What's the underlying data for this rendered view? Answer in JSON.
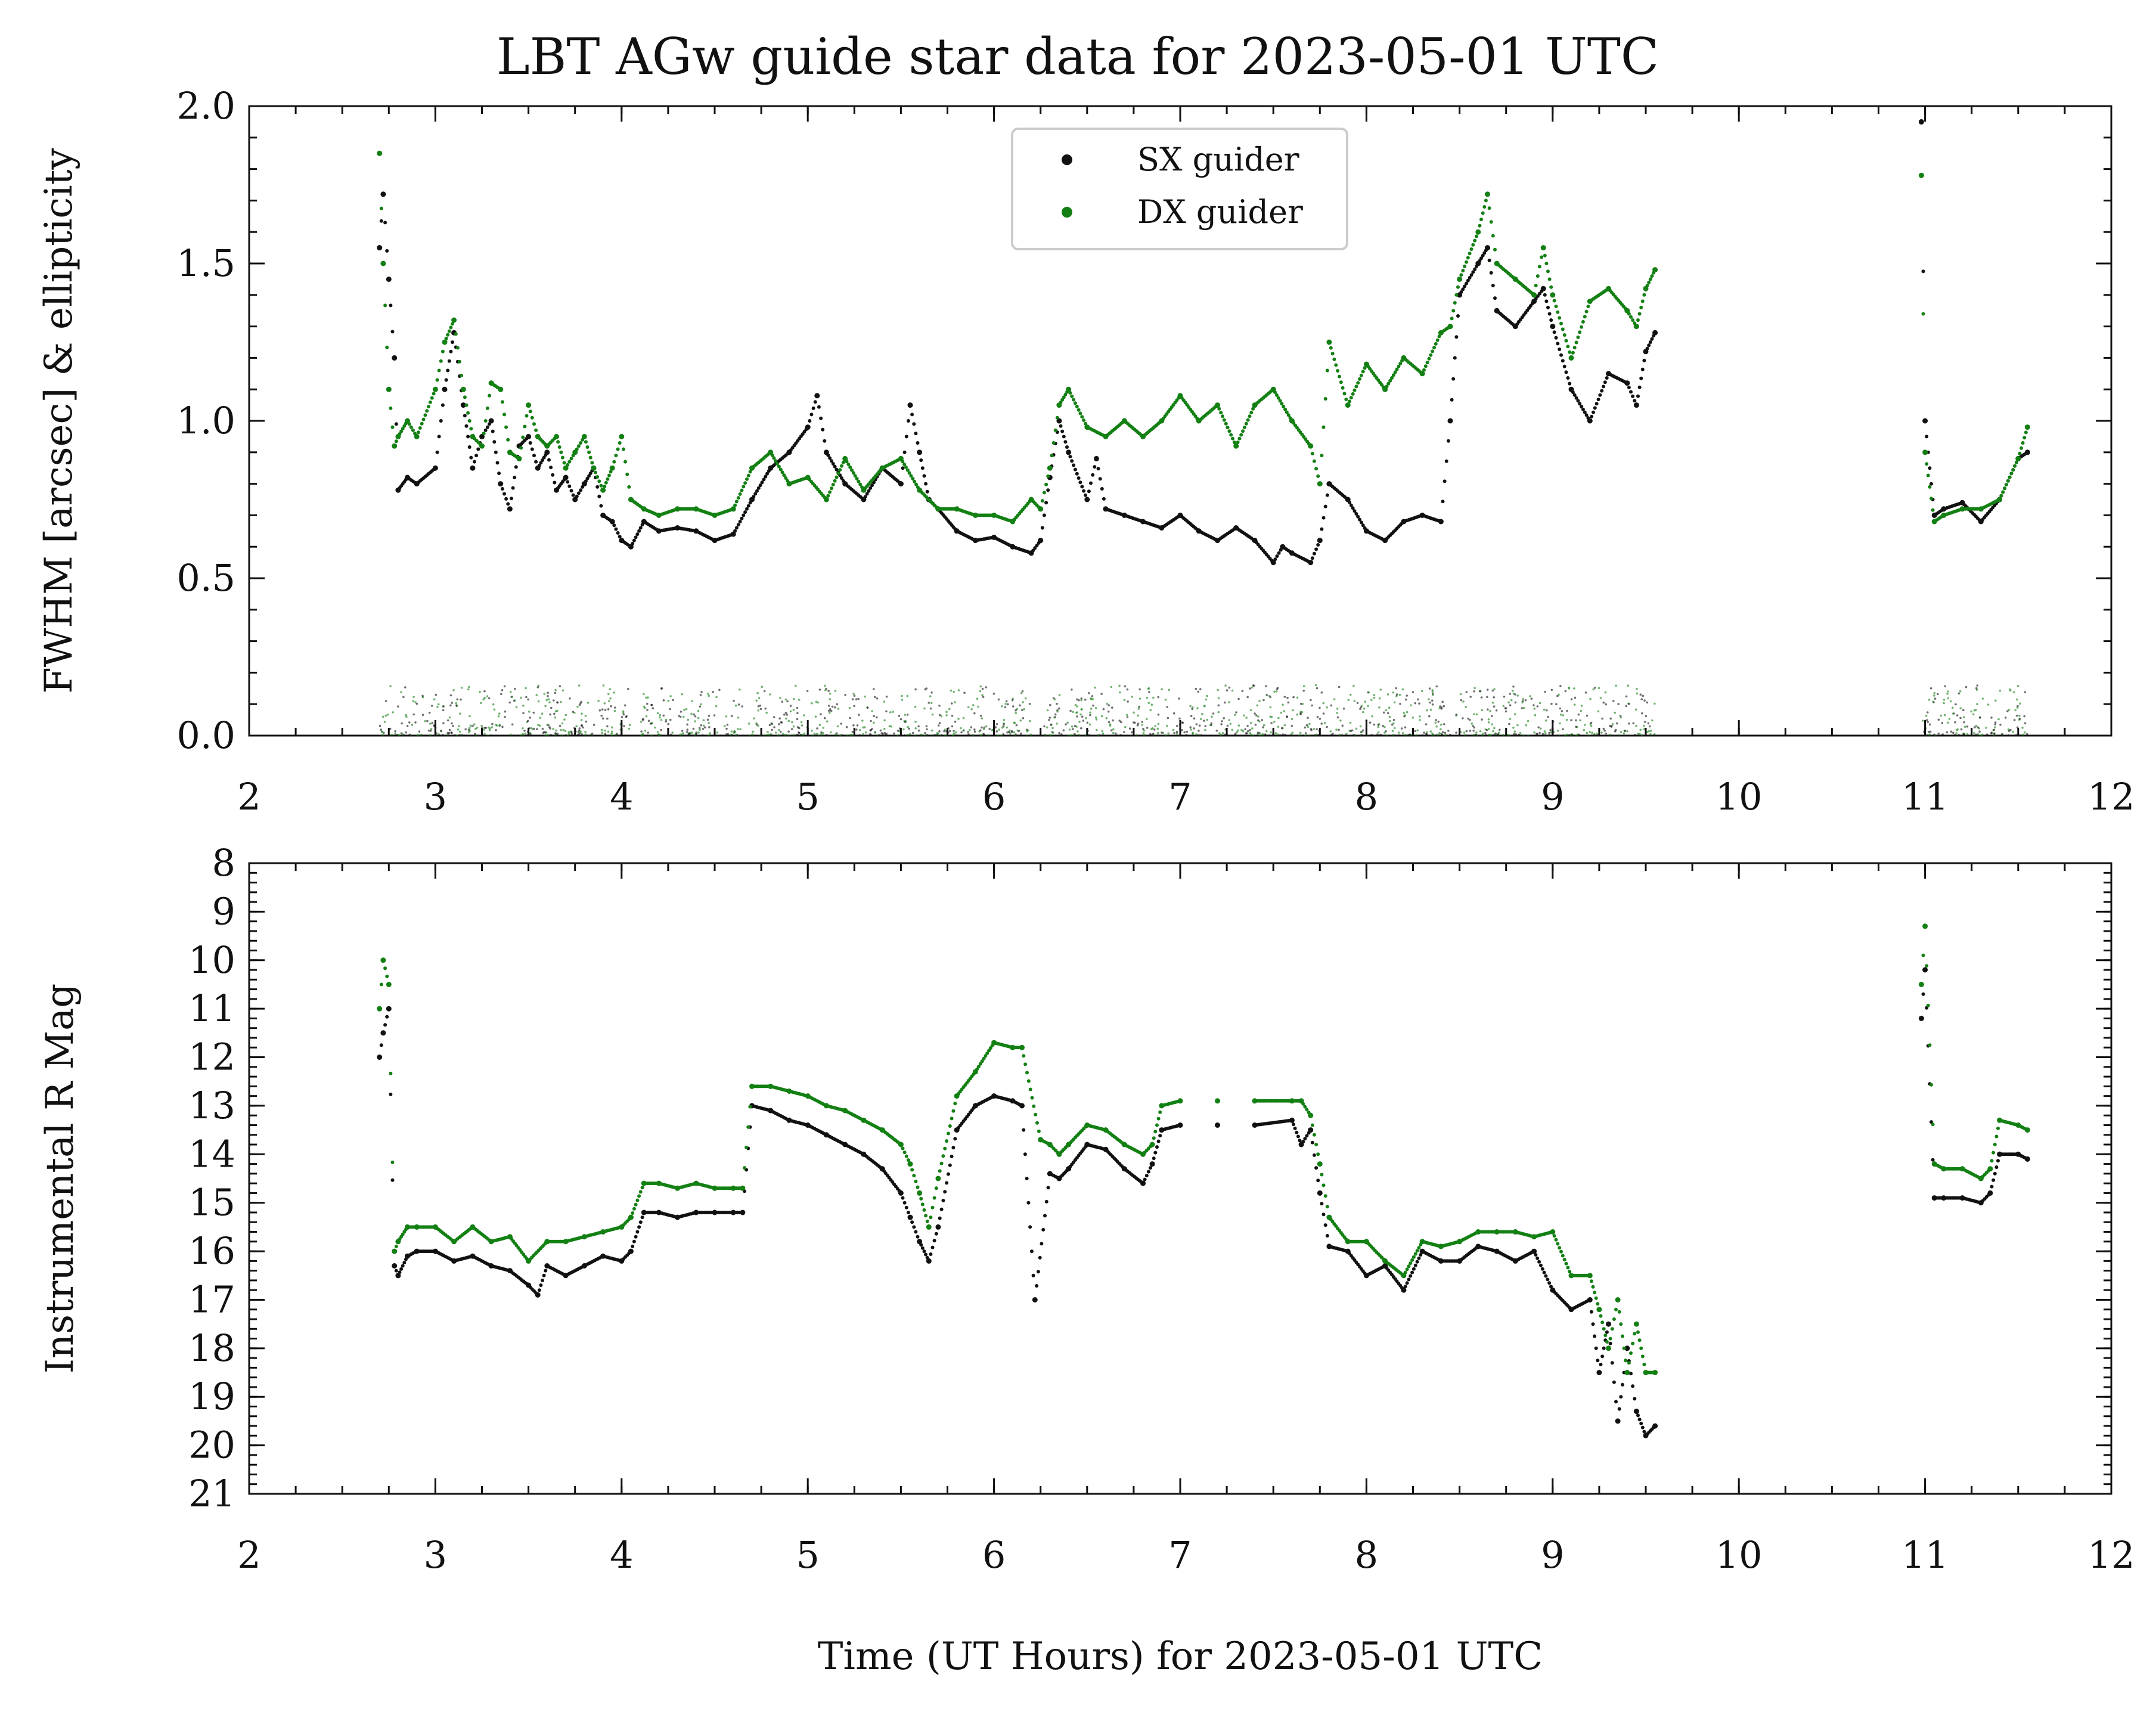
{
  "chart_data": [
    {
      "type": "scatter",
      "title": "LBT AGw guide star data for 2023-05-01 UTC",
      "ylabel": "FWHM [arcsec] & ellipticity",
      "xlabel": "",
      "xlim": [
        2,
        12
      ],
      "ylim": [
        0,
        2.0
      ],
      "x_ticks": [
        "2",
        "3",
        "4",
        "5",
        "6",
        "7",
        "8",
        "9",
        "10",
        "11",
        "12"
      ],
      "y_ticks": [
        "0.0",
        "0.5",
        "1.0",
        "1.5",
        "2.0"
      ],
      "legend": {
        "placement": "top-center",
        "entries": [
          "SX guider",
          "DX guider"
        ]
      },
      "grid": false,
      "series": [
        {
          "name": "SX guider",
          "color": "#111111",
          "x": [
            2.7,
            2.72,
            2.75,
            2.78,
            2.8,
            2.85,
            2.9,
            3.0,
            3.05,
            3.1,
            3.15,
            3.2,
            3.25,
            3.3,
            3.35,
            3.4,
            3.45,
            3.5,
            3.55,
            3.6,
            3.65,
            3.7,
            3.75,
            3.8,
            3.85,
            3.9,
            3.95,
            4.0,
            4.05,
            4.12,
            4.2,
            4.3,
            4.4,
            4.5,
            4.6,
            4.7,
            4.8,
            4.9,
            5.0,
            5.05,
            5.1,
            5.2,
            5.3,
            5.4,
            5.5,
            5.55,
            5.6,
            5.65,
            5.7,
            5.8,
            5.9,
            6.0,
            6.1,
            6.2,
            6.25,
            6.3,
            6.35,
            6.4,
            6.5,
            6.55,
            6.6,
            6.7,
            6.8,
            6.9,
            7.0,
            7.1,
            7.2,
            7.3,
            7.4,
            7.5,
            7.55,
            7.6,
            7.7,
            7.75,
            7.8,
            7.9,
            8.0,
            8.1,
            8.2,
            8.3,
            8.4,
            8.45,
            8.5,
            8.6,
            8.65,
            8.7,
            8.8,
            8.9,
            8.95,
            9.0,
            9.1,
            9.2,
            9.3,
            9.4,
            9.45,
            9.5,
            9.55,
            10.98,
            11.0,
            11.05,
            11.1,
            11.2,
            11.3,
            11.4,
            11.5,
            11.55
          ],
          "y": [
            1.55,
            1.72,
            1.45,
            1.2,
            0.78,
            0.82,
            0.8,
            0.85,
            1.1,
            1.28,
            1.05,
            0.85,
            0.95,
            1.0,
            0.8,
            0.72,
            0.92,
            0.95,
            0.85,
            0.9,
            0.78,
            0.82,
            0.75,
            0.8,
            0.85,
            0.7,
            0.68,
            0.62,
            0.6,
            0.68,
            0.65,
            0.66,
            0.65,
            0.62,
            0.64,
            0.75,
            0.85,
            0.9,
            0.98,
            1.08,
            0.9,
            0.8,
            0.75,
            0.85,
            0.8,
            1.05,
            0.9,
            0.75,
            0.72,
            0.65,
            0.62,
            0.63,
            0.6,
            0.58,
            0.62,
            0.82,
            1.0,
            0.9,
            0.75,
            0.88,
            0.72,
            0.7,
            0.68,
            0.66,
            0.7,
            0.65,
            0.62,
            0.66,
            0.62,
            0.55,
            0.6,
            0.58,
            0.55,
            0.62,
            0.8,
            0.75,
            0.65,
            0.62,
            0.68,
            0.7,
            0.68,
            1.0,
            1.4,
            1.5,
            1.55,
            1.35,
            1.3,
            1.38,
            1.42,
            1.3,
            1.1,
            1.0,
            1.15,
            1.12,
            1.05,
            1.22,
            1.28,
            1.95,
            1.0,
            0.7,
            0.72,
            0.74,
            0.68,
            0.75,
            0.88,
            0.9
          ]
        },
        {
          "name": "DX guider",
          "color": "#138013",
          "x": [
            2.7,
            2.72,
            2.75,
            2.78,
            2.8,
            2.85,
            2.9,
            3.0,
            3.05,
            3.1,
            3.15,
            3.2,
            3.25,
            3.3,
            3.35,
            3.4,
            3.45,
            3.5,
            3.55,
            3.6,
            3.65,
            3.7,
            3.75,
            3.8,
            3.85,
            3.9,
            3.95,
            4.0,
            4.05,
            4.12,
            4.2,
            4.3,
            4.4,
            4.5,
            4.6,
            4.7,
            4.8,
            4.9,
            5.0,
            5.1,
            5.2,
            5.3,
            5.4,
            5.5,
            5.6,
            5.7,
            5.8,
            5.9,
            6.0,
            6.1,
            6.2,
            6.25,
            6.3,
            6.35,
            6.4,
            6.5,
            6.6,
            6.7,
            6.8,
            6.9,
            7.0,
            7.1,
            7.2,
            7.3,
            7.4,
            7.5,
            7.6,
            7.7,
            7.75,
            7.8,
            7.9,
            8.0,
            8.1,
            8.2,
            8.3,
            8.4,
            8.45,
            8.5,
            8.6,
            8.65,
            8.7,
            8.8,
            8.9,
            8.95,
            9.0,
            9.1,
            9.2,
            9.3,
            9.4,
            9.45,
            9.5,
            9.55,
            10.98,
            11.0,
            11.05,
            11.1,
            11.2,
            11.3,
            11.4,
            11.5,
            11.55
          ],
          "y": [
            1.85,
            1.5,
            1.1,
            0.92,
            0.95,
            1.0,
            0.95,
            1.1,
            1.25,
            1.32,
            1.1,
            0.95,
            0.92,
            1.12,
            1.1,
            0.9,
            0.88,
            1.05,
            0.95,
            0.92,
            0.95,
            0.85,
            0.9,
            0.95,
            0.85,
            0.78,
            0.85,
            0.95,
            0.75,
            0.72,
            0.7,
            0.72,
            0.72,
            0.7,
            0.72,
            0.85,
            0.9,
            0.8,
            0.82,
            0.75,
            0.88,
            0.78,
            0.85,
            0.88,
            0.78,
            0.72,
            0.72,
            0.7,
            0.7,
            0.68,
            0.75,
            0.72,
            0.85,
            1.05,
            1.1,
            0.98,
            0.95,
            1.0,
            0.95,
            1.0,
            1.08,
            1.0,
            1.05,
            0.92,
            1.05,
            1.1,
            1.0,
            0.92,
            0.8,
            1.25,
            1.05,
            1.18,
            1.1,
            1.2,
            1.15,
            1.28,
            1.3,
            1.45,
            1.6,
            1.72,
            1.5,
            1.45,
            1.4,
            1.55,
            1.4,
            1.2,
            1.38,
            1.42,
            1.35,
            1.3,
            1.42,
            1.48,
            1.78,
            0.9,
            0.68,
            0.7,
            0.72,
            0.72,
            0.75,
            0.88,
            0.98
          ]
        }
      ]
    },
    {
      "type": "scatter",
      "title": "",
      "ylabel": "Instrumental R Mag",
      "xlabel": "Time (UT Hours) for 2023-05-01 UTC",
      "xlim": [
        2,
        12
      ],
      "ylim": [
        21,
        8
      ],
      "y_inverted": true,
      "x_ticks": [
        "2",
        "3",
        "4",
        "5",
        "6",
        "7",
        "8",
        "9",
        "10",
        "11",
        "12"
      ],
      "y_ticks": [
        "8",
        "9",
        "10",
        "11",
        "12",
        "13",
        "14",
        "15",
        "16",
        "17",
        "18",
        "19",
        "20",
        "21"
      ],
      "grid": false,
      "series": [
        {
          "name": "SX guider",
          "color": "#111111",
          "x": [
            2.7,
            2.72,
            2.75,
            2.78,
            2.8,
            2.85,
            2.9,
            3.0,
            3.1,
            3.2,
            3.3,
            3.4,
            3.5,
            3.55,
            3.6,
            3.7,
            3.8,
            3.9,
            4.0,
            4.05,
            4.12,
            4.2,
            4.3,
            4.4,
            4.5,
            4.6,
            4.65,
            4.7,
            4.8,
            4.9,
            5.0,
            5.1,
            5.2,
            5.3,
            5.4,
            5.5,
            5.55,
            5.6,
            5.65,
            5.7,
            5.8,
            5.9,
            6.0,
            6.1,
            6.15,
            6.22,
            6.3,
            6.35,
            6.4,
            6.5,
            6.6,
            6.7,
            6.8,
            6.85,
            6.9,
            7.0,
            7.2,
            7.4,
            7.6,
            7.65,
            7.7,
            7.75,
            7.8,
            7.9,
            8.0,
            8.1,
            8.2,
            8.3,
            8.4,
            8.5,
            8.6,
            8.7,
            8.8,
            8.9,
            9.0,
            9.1,
            9.2,
            9.25,
            9.3,
            9.35,
            9.4,
            9.45,
            9.5,
            9.55,
            10.98,
            11.0,
            11.05,
            11.1,
            11.2,
            11.3,
            11.35,
            11.4,
            11.5,
            11.55
          ],
          "y": [
            12.0,
            11.5,
            11.0,
            16.3,
            16.5,
            16.1,
            16.0,
            16.0,
            16.2,
            16.1,
            16.3,
            16.4,
            16.7,
            16.9,
            16.3,
            16.5,
            16.3,
            16.1,
            16.2,
            16.0,
            15.2,
            15.2,
            15.3,
            15.2,
            15.2,
            15.2,
            15.2,
            13.0,
            13.1,
            13.3,
            13.4,
            13.6,
            13.8,
            14.0,
            14.3,
            14.8,
            15.3,
            15.8,
            16.2,
            15.5,
            13.5,
            13.0,
            12.8,
            12.9,
            13.0,
            17.0,
            14.4,
            14.5,
            14.3,
            13.8,
            13.9,
            14.3,
            14.6,
            14.2,
            13.5,
            13.4,
            13.4,
            13.4,
            13.3,
            13.8,
            13.5,
            14.8,
            15.9,
            16.0,
            16.5,
            16.3,
            16.8,
            16.0,
            16.2,
            16.2,
            15.9,
            16.0,
            16.2,
            16.0,
            16.8,
            17.2,
            17.0,
            18.5,
            17.5,
            19.5,
            18.0,
            19.3,
            19.8,
            19.6,
            11.2,
            10.2,
            14.9,
            14.9,
            14.9,
            15.0,
            14.8,
            14.0,
            14.0,
            14.1
          ]
        },
        {
          "name": "DX guider",
          "color": "#138013",
          "x": [
            2.7,
            2.72,
            2.75,
            2.78,
            2.8,
            2.85,
            2.9,
            3.0,
            3.1,
            3.2,
            3.3,
            3.4,
            3.5,
            3.6,
            3.7,
            3.8,
            3.9,
            4.0,
            4.05,
            4.12,
            4.2,
            4.3,
            4.4,
            4.5,
            4.6,
            4.65,
            4.7,
            4.8,
            4.9,
            5.0,
            5.1,
            5.2,
            5.3,
            5.4,
            5.5,
            5.55,
            5.6,
            5.65,
            5.7,
            5.8,
            5.9,
            6.0,
            6.1,
            6.15,
            6.25,
            6.3,
            6.35,
            6.4,
            6.5,
            6.6,
            6.7,
            6.8,
            6.85,
            6.9,
            7.0,
            7.2,
            7.4,
            7.6,
            7.65,
            7.7,
            7.75,
            7.8,
            7.9,
            8.0,
            8.1,
            8.2,
            8.3,
            8.4,
            8.5,
            8.6,
            8.7,
            8.8,
            8.9,
            9.0,
            9.1,
            9.2,
            9.25,
            9.3,
            9.35,
            9.4,
            9.45,
            9.5,
            9.55,
            10.98,
            11.0,
            11.05,
            11.1,
            11.2,
            11.3,
            11.35,
            11.4,
            11.5,
            11.55
          ],
          "y": [
            11.0,
            10.0,
            10.5,
            16.0,
            15.8,
            15.5,
            15.5,
            15.5,
            15.8,
            15.5,
            15.8,
            15.7,
            16.2,
            15.8,
            15.8,
            15.7,
            15.6,
            15.5,
            15.3,
            14.6,
            14.6,
            14.7,
            14.6,
            14.7,
            14.7,
            14.7,
            12.6,
            12.6,
            12.7,
            12.8,
            13.0,
            13.1,
            13.3,
            13.5,
            13.8,
            14.2,
            14.8,
            15.5,
            14.5,
            12.8,
            12.3,
            11.7,
            11.8,
            11.8,
            13.7,
            13.8,
            14.0,
            13.8,
            13.4,
            13.5,
            13.8,
            14.0,
            13.8,
            13.0,
            12.9,
            12.9,
            12.9,
            12.9,
            12.9,
            13.2,
            14.2,
            15.3,
            15.8,
            15.8,
            16.2,
            16.5,
            15.8,
            15.9,
            15.8,
            15.6,
            15.6,
            15.6,
            15.7,
            15.6,
            16.5,
            16.5,
            17.2,
            18.0,
            17.0,
            18.5,
            17.5,
            18.5,
            18.5,
            10.5,
            9.3,
            14.2,
            14.3,
            14.3,
            14.5,
            14.3,
            13.3,
            13.4,
            13.5
          ]
        }
      ]
    }
  ]
}
